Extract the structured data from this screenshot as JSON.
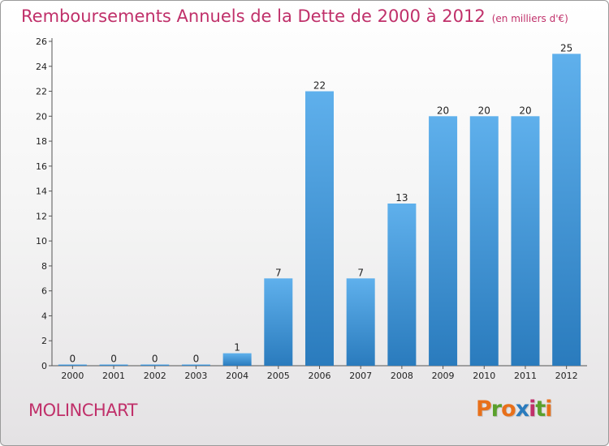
{
  "header": {
    "title": "Remboursements Annuels de la Dette de 2000 à 2012",
    "unit": "(en milliers d'€)"
  },
  "footer": {
    "commune": "MOLINCHART",
    "logo": [
      "P",
      "r",
      "o",
      "x",
      "i",
      "t",
      "i"
    ]
  },
  "colors": {
    "title": "#c0306a",
    "bar_top": "#5fb0ec",
    "bar_bottom": "#2a7bbd",
    "logo": [
      "#e8701a",
      "#5aa02c",
      "#e8701a",
      "#2a7bbd",
      "#c0306a",
      "#5aa02c",
      "#e8701a"
    ]
  },
  "chart_data": {
    "type": "bar",
    "categories": [
      "2000",
      "2001",
      "2002",
      "2003",
      "2004",
      "2005",
      "2006",
      "2007",
      "2008",
      "2009",
      "2010",
      "2011",
      "2012"
    ],
    "values": [
      0,
      0,
      0,
      0,
      1,
      7,
      22,
      7,
      13,
      20,
      20,
      20,
      25
    ],
    "value_labels": [
      "0",
      "0",
      "0",
      "0",
      "1",
      "7",
      "22",
      "7",
      "13",
      "20",
      "20",
      "20",
      "25"
    ],
    "y_ticks": [
      0,
      2,
      4,
      6,
      8,
      10,
      12,
      14,
      16,
      18,
      20,
      22,
      24,
      26
    ],
    "ylim": [
      0,
      26
    ],
    "grid": false,
    "legend": "none"
  }
}
